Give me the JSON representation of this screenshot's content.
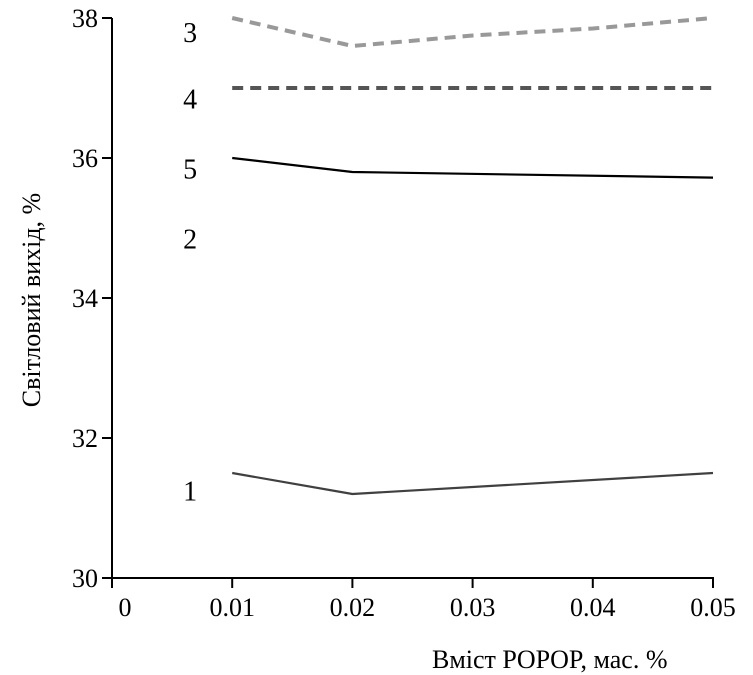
{
  "chart_data": {
    "type": "line",
    "xlabel": "Вміст POPOP, мас. %",
    "ylabel": "Світловий вихід, %",
    "xlim": [
      0,
      0.05
    ],
    "ylim": [
      30,
      38
    ],
    "x_ticks": [
      "0",
      "0.01",
      "0.02",
      "0.03",
      "0.04",
      "0.05"
    ],
    "y_ticks": [
      "30",
      "32",
      "34",
      "36",
      "38"
    ],
    "x_tick_values": [
      0,
      0.01,
      0.02,
      0.03,
      0.04,
      0.05
    ],
    "y_tick_values": [
      30,
      32,
      34,
      36,
      38
    ],
    "grid": false,
    "series": [
      {
        "name": "1",
        "x": [
          0.01,
          0.02,
          0.05
        ],
        "y": [
          31.5,
          31.2,
          31.5
        ],
        "color": "#404040",
        "style": "solid"
      },
      {
        "name": "2",
        "x": [],
        "y": [],
        "color": "#000000",
        "style": "solid"
      },
      {
        "name": "3",
        "x": [
          0.01,
          0.02,
          0.03,
          0.04,
          0.05
        ],
        "y": [
          38.0,
          37.6,
          37.75,
          37.85,
          38.0
        ],
        "color": "#999999",
        "style": "dashed"
      },
      {
        "name": "4",
        "x": [
          0.01,
          0.05
        ],
        "y": [
          37.0,
          37.0
        ],
        "color": "#555555",
        "style": "dashed"
      },
      {
        "name": "5",
        "x": [
          0.01,
          0.02,
          0.05
        ],
        "y": [
          36.0,
          35.8,
          35.72
        ],
        "color": "#000000",
        "style": "solid"
      }
    ],
    "series_labels": [
      {
        "text": "1",
        "x": 0.0065,
        "y": 31.25
      },
      {
        "text": "2",
        "x": 0.0065,
        "y": 34.85
      },
      {
        "text": "3",
        "x": 0.0065,
        "y": 37.8
      },
      {
        "text": "4",
        "x": 0.0065,
        "y": 36.85
      },
      {
        "text": "5",
        "x": 0.0065,
        "y": 35.85
      }
    ]
  }
}
